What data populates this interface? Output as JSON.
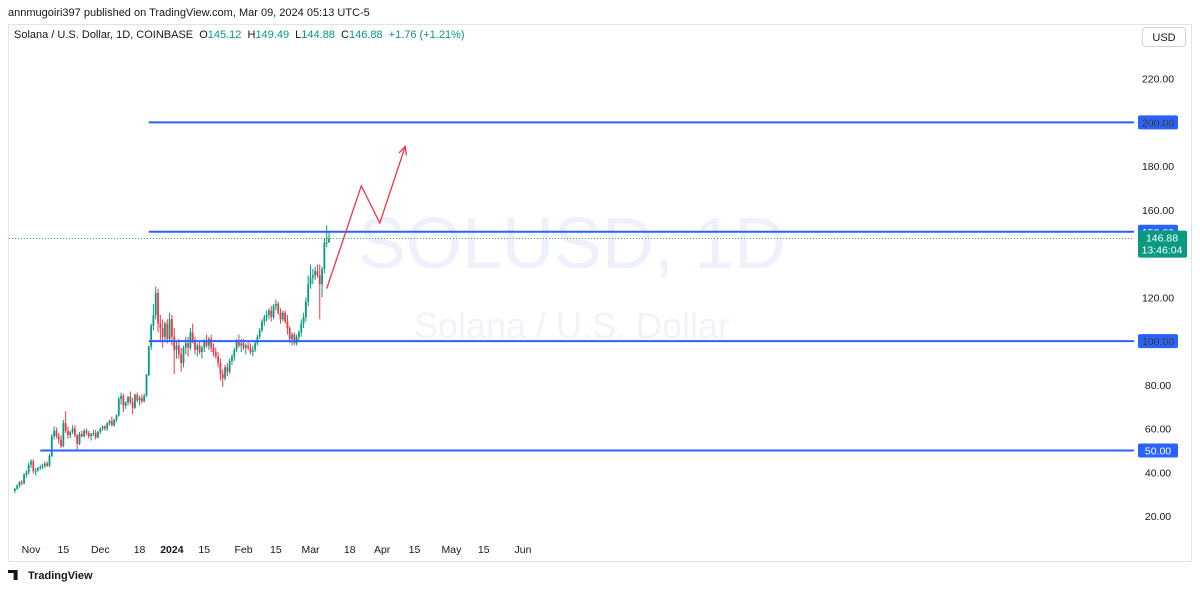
{
  "header": {
    "published": "annmugoiri397 published on TradingView.com, Mar 09, 2024 05:13 UTC-5",
    "symbol": "Solana / U.S. Dollar, 1D, COINBASE",
    "open_label": "O",
    "open": "145.12",
    "high_label": "H",
    "high": "149.49",
    "low_label": "L",
    "low": "144.88",
    "close_label": "C",
    "close": "146.88",
    "change": "+1.76 (+1.21%)",
    "currency": "USD"
  },
  "footer": {
    "brand": "TradingView"
  },
  "chart_data": {
    "type": "candlestick",
    "symbol": "SOLUSD",
    "watermark_line1": "SOLUSD, 1D",
    "watermark_line2": "Solana / U.S. Dollar",
    "ylim": [
      10,
      234
    ],
    "y_ticks": [
      "220.00",
      "200.00",
      "180.00",
      "160.00",
      "140.00",
      "120.00",
      "100.00",
      "80.00",
      "60.00",
      "40.00",
      "20.00"
    ],
    "x_ticks": [
      "Nov",
      "15",
      "Dec",
      "18",
      "2024",
      "15",
      "Feb",
      "15",
      "Mar",
      "18",
      "Apr",
      "15",
      "May",
      "15",
      "Jun"
    ],
    "last_price": "146.88",
    "countdown": "13:46:04",
    "horizontal_levels": [
      {
        "value": 200,
        "label": "200.00",
        "start": "2023-12-22"
      },
      {
        "value": 150,
        "label": "150.00",
        "start": "2023-12-22"
      },
      {
        "value": 100,
        "label": "100.00",
        "start": "2023-12-22"
      },
      {
        "value": 50,
        "label": "50.00",
        "start": "2023-11-05"
      }
    ],
    "projection_path": [
      {
        "date": "2024-03-08",
        "price": 124
      },
      {
        "date": "2024-03-23",
        "price": 171
      },
      {
        "date": "2024-03-31",
        "price": 154
      },
      {
        "date": "2024-04-11",
        "price": 189
      }
    ],
    "candles": [
      [
        "2023-10-25",
        31.5,
        33.0,
        30.5,
        32.5
      ],
      [
        "2023-10-26",
        32.5,
        34.5,
        32.0,
        34.0
      ],
      [
        "2023-10-27",
        34.0,
        36.0,
        33.0,
        35.5
      ],
      [
        "2023-10-28",
        35.5,
        36.5,
        34.0,
        35.0
      ],
      [
        "2023-10-29",
        35.0,
        39.5,
        34.5,
        39.0
      ],
      [
        "2023-10-30",
        39.0,
        41.0,
        37.5,
        40.0
      ],
      [
        "2023-10-31",
        40.0,
        44.5,
        39.0,
        43.5
      ],
      [
        "2023-11-01",
        43.5,
        46.0,
        42.0,
        45.0
      ],
      [
        "2023-11-02",
        45.0,
        46.0,
        39.5,
        40.5
      ],
      [
        "2023-11-03",
        40.5,
        42.0,
        38.5,
        41.0
      ],
      [
        "2023-11-04",
        41.0,
        42.5,
        40.0,
        42.0
      ],
      [
        "2023-11-05",
        42.0,
        43.5,
        41.0,
        42.5
      ],
      [
        "2023-11-06",
        42.5,
        44.0,
        41.5,
        43.0
      ],
      [
        "2023-11-07",
        43.0,
        45.0,
        42.0,
        44.0
      ],
      [
        "2023-11-08",
        44.0,
        45.0,
        42.5,
        43.0
      ],
      [
        "2023-11-09",
        43.0,
        48.5,
        42.5,
        47.5
      ],
      [
        "2023-11-10",
        47.5,
        57.5,
        47.0,
        56.5
      ],
      [
        "2023-11-11",
        56.5,
        61.0,
        55.0,
        59.0
      ],
      [
        "2023-11-12",
        59.0,
        60.5,
        55.5,
        56.5
      ],
      [
        "2023-11-13",
        56.5,
        58.0,
        53.0,
        55.0
      ],
      [
        "2023-11-14",
        55.0,
        57.0,
        51.0,
        52.0
      ],
      [
        "2023-11-15",
        52.0,
        64.0,
        51.5,
        62.5
      ],
      [
        "2023-11-16",
        62.5,
        68.0,
        58.0,
        59.0
      ],
      [
        "2023-11-17",
        59.0,
        61.0,
        55.5,
        57.0
      ],
      [
        "2023-11-18",
        57.0,
        59.0,
        55.5,
        58.5
      ],
      [
        "2023-11-19",
        58.5,
        61.5,
        57.5,
        60.0
      ],
      [
        "2023-11-20",
        60.0,
        61.5,
        56.0,
        57.0
      ],
      [
        "2023-11-21",
        57.0,
        57.5,
        50.5,
        53.0
      ],
      [
        "2023-11-22",
        53.0,
        58.5,
        52.5,
        57.5
      ],
      [
        "2023-11-23",
        57.5,
        59.0,
        56.0,
        56.5
      ],
      [
        "2023-11-24",
        56.5,
        60.0,
        56.0,
        59.0
      ],
      [
        "2023-11-25",
        59.0,
        60.0,
        57.0,
        58.0
      ],
      [
        "2023-11-26",
        58.0,
        59.0,
        55.5,
        56.5
      ],
      [
        "2023-11-27",
        56.5,
        58.0,
        54.5,
        57.5
      ],
      [
        "2023-11-28",
        57.5,
        59.5,
        56.5,
        58.0
      ],
      [
        "2023-11-29",
        58.0,
        59.5,
        55.0,
        56.0
      ],
      [
        "2023-11-30",
        56.0,
        59.0,
        55.5,
        58.5
      ],
      [
        "2023-12-01",
        58.5,
        60.5,
        57.5,
        60.0
      ],
      [
        "2023-12-02",
        60.0,
        61.5,
        59.0,
        61.0
      ],
      [
        "2023-12-03",
        61.0,
        61.5,
        59.0,
        60.0
      ],
      [
        "2023-12-04",
        60.0,
        63.0,
        59.0,
        62.5
      ],
      [
        "2023-12-05",
        62.5,
        64.0,
        61.5,
        63.5
      ],
      [
        "2023-12-06",
        63.5,
        65.5,
        61.0,
        61.5
      ],
      [
        "2023-12-07",
        61.5,
        64.5,
        61.0,
        64.0
      ],
      [
        "2023-12-08",
        64.0,
        66.5,
        63.0,
        66.0
      ],
      [
        "2023-12-09",
        66.0,
        74.5,
        65.5,
        73.5
      ],
      [
        "2023-12-10",
        73.5,
        76.5,
        71.0,
        75.0
      ],
      [
        "2023-12-11",
        75.0,
        76.0,
        67.5,
        70.5
      ],
      [
        "2023-12-12",
        70.5,
        72.5,
        69.0,
        72.0
      ],
      [
        "2023-12-13",
        72.0,
        75.0,
        70.5,
        74.5
      ],
      [
        "2023-12-14",
        74.5,
        77.0,
        71.0,
        72.0
      ],
      [
        "2023-12-15",
        72.0,
        74.0,
        66.5,
        69.5
      ],
      [
        "2023-12-16",
        69.5,
        76.0,
        69.0,
        75.5
      ],
      [
        "2023-12-17",
        75.5,
        76.5,
        72.0,
        73.0
      ],
      [
        "2023-12-18",
        73.0,
        75.0,
        70.5,
        74.0
      ],
      [
        "2023-12-19",
        74.0,
        75.5,
        71.5,
        72.5
      ],
      [
        "2023-12-20",
        72.5,
        76.0,
        72.0,
        75.0
      ],
      [
        "2023-12-21",
        75.0,
        85.0,
        74.5,
        84.5
      ],
      [
        "2023-12-22",
        84.5,
        98.0,
        84.0,
        97.5
      ],
      [
        "2023-12-23",
        97.5,
        108.0,
        96.0,
        107.0
      ],
      [
        "2023-12-24",
        107.0,
        117.0,
        105.0,
        112.0
      ],
      [
        "2023-12-25",
        112.0,
        125.0,
        110.0,
        122.0
      ],
      [
        "2023-12-26",
        122.0,
        124.0,
        104.0,
        108.0
      ],
      [
        "2023-12-27",
        108.0,
        112.0,
        100.0,
        106.0
      ],
      [
        "2023-12-28",
        106.0,
        110.0,
        97.0,
        102.0
      ],
      [
        "2023-12-29",
        102.0,
        109.0,
        100.0,
        108.0
      ],
      [
        "2023-12-30",
        108.0,
        110.0,
        99.0,
        101.0
      ],
      [
        "2023-12-31",
        101.0,
        113.0,
        100.0,
        110.0
      ],
      [
        "2024-01-01",
        110.0,
        112.0,
        98.0,
        102.0
      ],
      [
        "2024-01-02",
        102.0,
        106.0,
        85.0,
        96.0
      ],
      [
        "2024-01-03",
        96.0,
        100.0,
        92.0,
        98.0
      ],
      [
        "2024-01-04",
        98.0,
        101.0,
        92.0,
        94.0
      ],
      [
        "2024-01-05",
        94.0,
        97.0,
        86.0,
        90.0
      ],
      [
        "2024-01-06",
        90.0,
        98.0,
        88.0,
        97.0
      ],
      [
        "2024-01-07",
        97.0,
        102.0,
        94.0,
        99.0
      ],
      [
        "2024-01-08",
        99.0,
        102.0,
        93.0,
        97.0
      ],
      [
        "2024-01-09",
        97.0,
        106.0,
        96.0,
        104.0
      ],
      [
        "2024-01-10",
        104.0,
        108.0,
        99.0,
        100.0
      ],
      [
        "2024-01-11",
        100.0,
        102.0,
        94.0,
        96.0
      ],
      [
        "2024-01-12",
        96.0,
        99.0,
        93.0,
        98.0
      ],
      [
        "2024-01-13",
        98.0,
        100.0,
        94.0,
        95.0
      ],
      [
        "2024-01-14",
        95.0,
        98.0,
        92.0,
        97.0
      ],
      [
        "2024-01-15",
        97.0,
        101.0,
        95.0,
        100.0
      ],
      [
        "2024-01-16",
        100.0,
        103.0,
        97.0,
        98.0
      ],
      [
        "2024-01-17",
        98.0,
        102.0,
        96.0,
        101.0
      ],
      [
        "2024-01-18",
        101.0,
        103.0,
        95.0,
        97.0
      ],
      [
        "2024-01-19",
        97.0,
        99.0,
        93.0,
        95.0
      ],
      [
        "2024-01-20",
        95.0,
        97.0,
        92.0,
        93.0
      ],
      [
        "2024-01-21",
        93.0,
        95.0,
        88.0,
        90.0
      ],
      [
        "2024-01-22",
        90.0,
        92.0,
        82.0,
        85.0
      ],
      [
        "2024-01-23",
        85.0,
        87.0,
        79.0,
        83.0
      ],
      [
        "2024-01-24",
        83.0,
        89.0,
        82.0,
        88.0
      ],
      [
        "2024-01-25",
        88.0,
        90.0,
        84.0,
        86.0
      ],
      [
        "2024-01-26",
        86.0,
        92.0,
        85.0,
        91.0
      ],
      [
        "2024-01-27",
        91.0,
        94.0,
        89.0,
        93.0
      ],
      [
        "2024-01-28",
        93.0,
        97.0,
        91.0,
        96.0
      ],
      [
        "2024-01-29",
        96.0,
        101.0,
        95.0,
        100.0
      ],
      [
        "2024-01-30",
        100.0,
        103.0,
        97.0,
        98.0
      ],
      [
        "2024-01-31",
        98.0,
        101.0,
        95.0,
        99.0
      ],
      [
        "2024-02-01",
        99.0,
        101.0,
        96.0,
        97.0
      ],
      [
        "2024-02-02",
        97.0,
        99.0,
        94.0,
        98.0
      ],
      [
        "2024-02-03",
        98.0,
        100.0,
        96.0,
        97.0
      ],
      [
        "2024-02-04",
        97.0,
        99.0,
        94.0,
        95.0
      ],
      [
        "2024-02-05",
        95.0,
        98.0,
        93.0,
        96.0
      ],
      [
        "2024-02-06",
        96.0,
        100.0,
        95.0,
        99.0
      ],
      [
        "2024-02-07",
        99.0,
        103.0,
        98.0,
        102.0
      ],
      [
        "2024-02-08",
        102.0,
        106.0,
        101.0,
        105.0
      ],
      [
        "2024-02-09",
        105.0,
        110.0,
        104.0,
        109.0
      ],
      [
        "2024-02-10",
        109.0,
        112.0,
        107.0,
        111.0
      ],
      [
        "2024-02-11",
        111.0,
        114.0,
        109.0,
        112.0
      ],
      [
        "2024-02-12",
        112.0,
        115.0,
        110.0,
        114.0
      ],
      [
        "2024-02-13",
        114.0,
        116.0,
        109.0,
        111.0
      ],
      [
        "2024-02-14",
        111.0,
        117.0,
        110.0,
        116.0
      ],
      [
        "2024-02-15",
        116.0,
        119.0,
        114.0,
        117.0
      ],
      [
        "2024-02-16",
        117.0,
        118.0,
        112.0,
        113.0
      ],
      [
        "2024-02-17",
        113.0,
        115.0,
        108.0,
        110.0
      ],
      [
        "2024-02-18",
        110.0,
        114.0,
        109.0,
        113.0
      ],
      [
        "2024-02-19",
        113.0,
        114.0,
        108.0,
        109.0
      ],
      [
        "2024-02-20",
        109.0,
        112.0,
        103.0,
        106.0
      ],
      [
        "2024-02-21",
        106.0,
        107.0,
        99.0,
        101.0
      ],
      [
        "2024-02-22",
        101.0,
        104.0,
        98.0,
        103.0
      ],
      [
        "2024-02-23",
        103.0,
        104.0,
        98.0,
        99.0
      ],
      [
        "2024-02-24",
        99.0,
        103.0,
        98.0,
        102.0
      ],
      [
        "2024-02-25",
        102.0,
        105.0,
        100.0,
        104.0
      ],
      [
        "2024-02-26",
        104.0,
        110.0,
        102.0,
        108.0
      ],
      [
        "2024-02-27",
        108.0,
        113.0,
        106.0,
        111.0
      ],
      [
        "2024-02-28",
        111.0,
        120.0,
        109.0,
        118.0
      ],
      [
        "2024-02-29",
        118.0,
        130.0,
        116.0,
        126.0
      ],
      [
        "2024-03-01",
        126.0,
        135.0,
        124.0,
        129.0
      ],
      [
        "2024-03-02",
        129.0,
        133.0,
        126.0,
        130.0
      ],
      [
        "2024-03-03",
        130.0,
        134.0,
        128.0,
        132.0
      ],
      [
        "2024-03-04",
        132.0,
        135.0,
        129.0,
        130.0
      ],
      [
        "2024-03-05",
        130.0,
        135.0,
        110.0,
        126.0
      ],
      [
        "2024-03-06",
        126.0,
        134.0,
        120.0,
        133.0
      ],
      [
        "2024-03-07",
        133.0,
        147.0,
        131.0,
        145.0
      ],
      [
        "2024-03-08",
        145.0,
        153.0,
        143.0,
        145.1
      ],
      [
        "2024-03-09",
        145.12,
        149.49,
        144.88,
        146.88
      ]
    ]
  }
}
